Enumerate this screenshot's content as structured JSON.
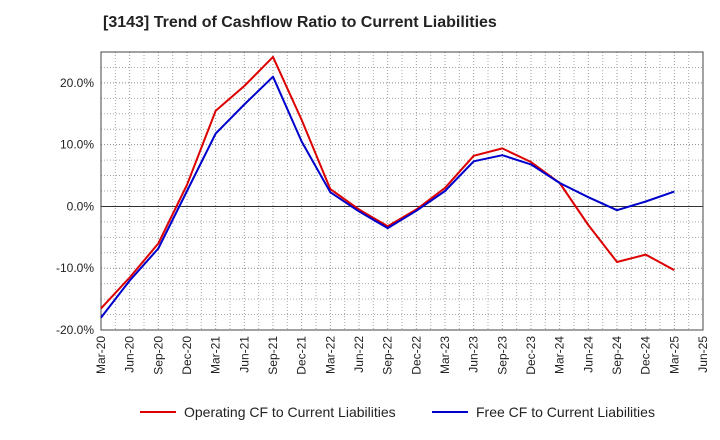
{
  "chart_data": {
    "type": "line",
    "title": "[3143]  Trend of Cashflow Ratio to Current Liabilities",
    "xlabel": "",
    "ylabel": "",
    "x": [
      "Mar-20",
      "Jun-20",
      "Sep-20",
      "Dec-20",
      "Mar-21",
      "Jun-21",
      "Sep-21",
      "Dec-21",
      "Mar-22",
      "Jun-22",
      "Sep-22",
      "Dec-22",
      "Mar-23",
      "Jun-23",
      "Sep-23",
      "Dec-23",
      "Mar-24",
      "Jun-24",
      "Sep-24",
      "Dec-24",
      "Mar-25",
      "Jun-25"
    ],
    "ylim": [
      -20,
      25
    ],
    "yticks": [
      -20,
      -10,
      0,
      10,
      20
    ],
    "ytick_labels": [
      "-20.0%",
      "-10.0%",
      "0.0%",
      "10.0%",
      "20.0%"
    ],
    "grid": true,
    "series": [
      {
        "name": "Operating CF to Current Liabilities",
        "color": "#dd0000",
        "values": [
          -16.5,
          -11.5,
          -6.0,
          3.5,
          15.5,
          19.5,
          24.2,
          14.0,
          2.8,
          -0.5,
          -3.2,
          -0.5,
          3.0,
          8.2,
          9.4,
          7.2,
          3.8,
          -3.0,
          -9.0,
          -7.8,
          -10.3,
          null
        ]
      },
      {
        "name": "Free CF to Current Liabilities",
        "color": "#0000cc",
        "values": [
          -18.0,
          -12.0,
          -6.8,
          2.5,
          11.8,
          16.5,
          21.0,
          10.5,
          2.3,
          -0.8,
          -3.5,
          -0.7,
          2.5,
          7.3,
          8.3,
          6.8,
          3.8,
          1.5,
          -0.6,
          0.8,
          2.4,
          null
        ]
      }
    ],
    "legend_position": "bottom"
  }
}
